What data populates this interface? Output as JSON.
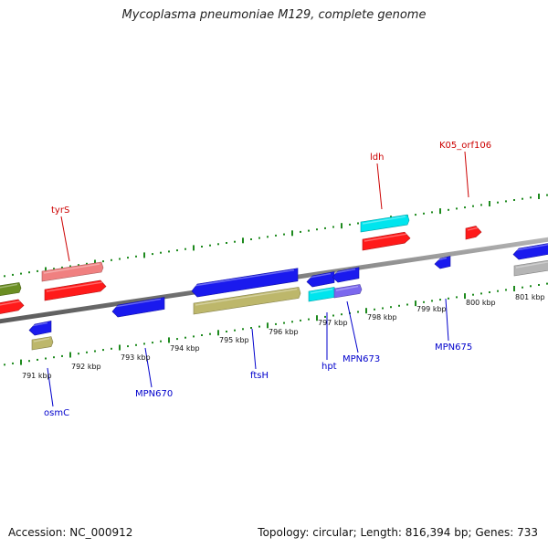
{
  "title": "Mycoplasma pneumoniae M129, complete genome",
  "footer": {
    "accession": "Accession: NC_000912",
    "summary": "Topology: circular; Length: 816,394 bp; Genes: 733"
  },
  "colors": {
    "backbone": "#8c8c8c",
    "tick": "#1e8a1e",
    "forward_label": "#cc0000",
    "reverse_label": "#0000cc"
  },
  "scale": {
    "unit": "kbp",
    "labels": [
      "791 kbp",
      "792 kbp",
      "793 kbp",
      "794 kbp",
      "795 kbp",
      "796 kbp",
      "797 kbp",
      "798 kbp",
      "799 kbp",
      "800 kbp",
      "801 kbp"
    ]
  },
  "forward_labels": [
    {
      "name": "tyrS"
    },
    {
      "name": "ldh"
    },
    {
      "name": "K05_orf106"
    }
  ],
  "reverse_labels": [
    {
      "name": "osmC"
    },
    {
      "name": "MPN670"
    },
    {
      "name": "ftsH"
    },
    {
      "name": "hpt"
    },
    {
      "name": "MPN673"
    },
    {
      "name": "MPN675"
    }
  ],
  "features": [
    {
      "id": "f-olive-left",
      "strand": "forward",
      "type": "cds",
      "color": "#6b8e23"
    },
    {
      "id": "f-red-left",
      "strand": "forward",
      "type": "gene",
      "color": "#ff1a1a"
    },
    {
      "id": "f-tyrs-cds",
      "strand": "forward",
      "type": "cds",
      "color": "#f08080"
    },
    {
      "id": "f-tyrs-gene",
      "strand": "forward",
      "type": "gene",
      "color": "#ff1a1a"
    },
    {
      "id": "f-ldh-cds",
      "strand": "forward",
      "type": "cds",
      "color": "#00e5ee"
    },
    {
      "id": "f-ldh-gene",
      "strand": "forward",
      "type": "gene",
      "color": "#ff1a1a"
    },
    {
      "id": "f-k05-gene",
      "strand": "forward",
      "type": "gene",
      "color": "#ff1a1a"
    },
    {
      "id": "r-osmc-gene",
      "strand": "reverse",
      "type": "gene",
      "color": "#1a1aee"
    },
    {
      "id": "r-osmc-cds",
      "strand": "reverse",
      "type": "cds",
      "color": "#bdb76b"
    },
    {
      "id": "r-mpn670-gene",
      "strand": "reverse",
      "type": "gene",
      "color": "#1a1aee"
    },
    {
      "id": "r-ftsh-gene",
      "strand": "reverse",
      "type": "gene",
      "color": "#1a1aee"
    },
    {
      "id": "r-ftsh-cds",
      "strand": "reverse",
      "type": "cds",
      "color": "#bdb76b"
    },
    {
      "id": "r-hpt-gene",
      "strand": "reverse",
      "type": "gene",
      "color": "#1a1aee"
    },
    {
      "id": "r-mpn673-gene",
      "strand": "reverse",
      "type": "gene",
      "color": "#1a1aee"
    },
    {
      "id": "r-hpt-cds",
      "strand": "reverse",
      "type": "cds",
      "color": "#00e5ee"
    },
    {
      "id": "r-mpn673-cds",
      "strand": "reverse",
      "type": "cds",
      "color": "#7b68ee"
    },
    {
      "id": "r-mpn675-gene",
      "strand": "reverse",
      "type": "gene",
      "color": "#1a1aee"
    },
    {
      "id": "r-right-gene",
      "strand": "reverse",
      "type": "gene",
      "color": "#1a1aee"
    },
    {
      "id": "r-right-cds",
      "strand": "reverse",
      "type": "cds",
      "color": "#b5b5b5"
    }
  ]
}
